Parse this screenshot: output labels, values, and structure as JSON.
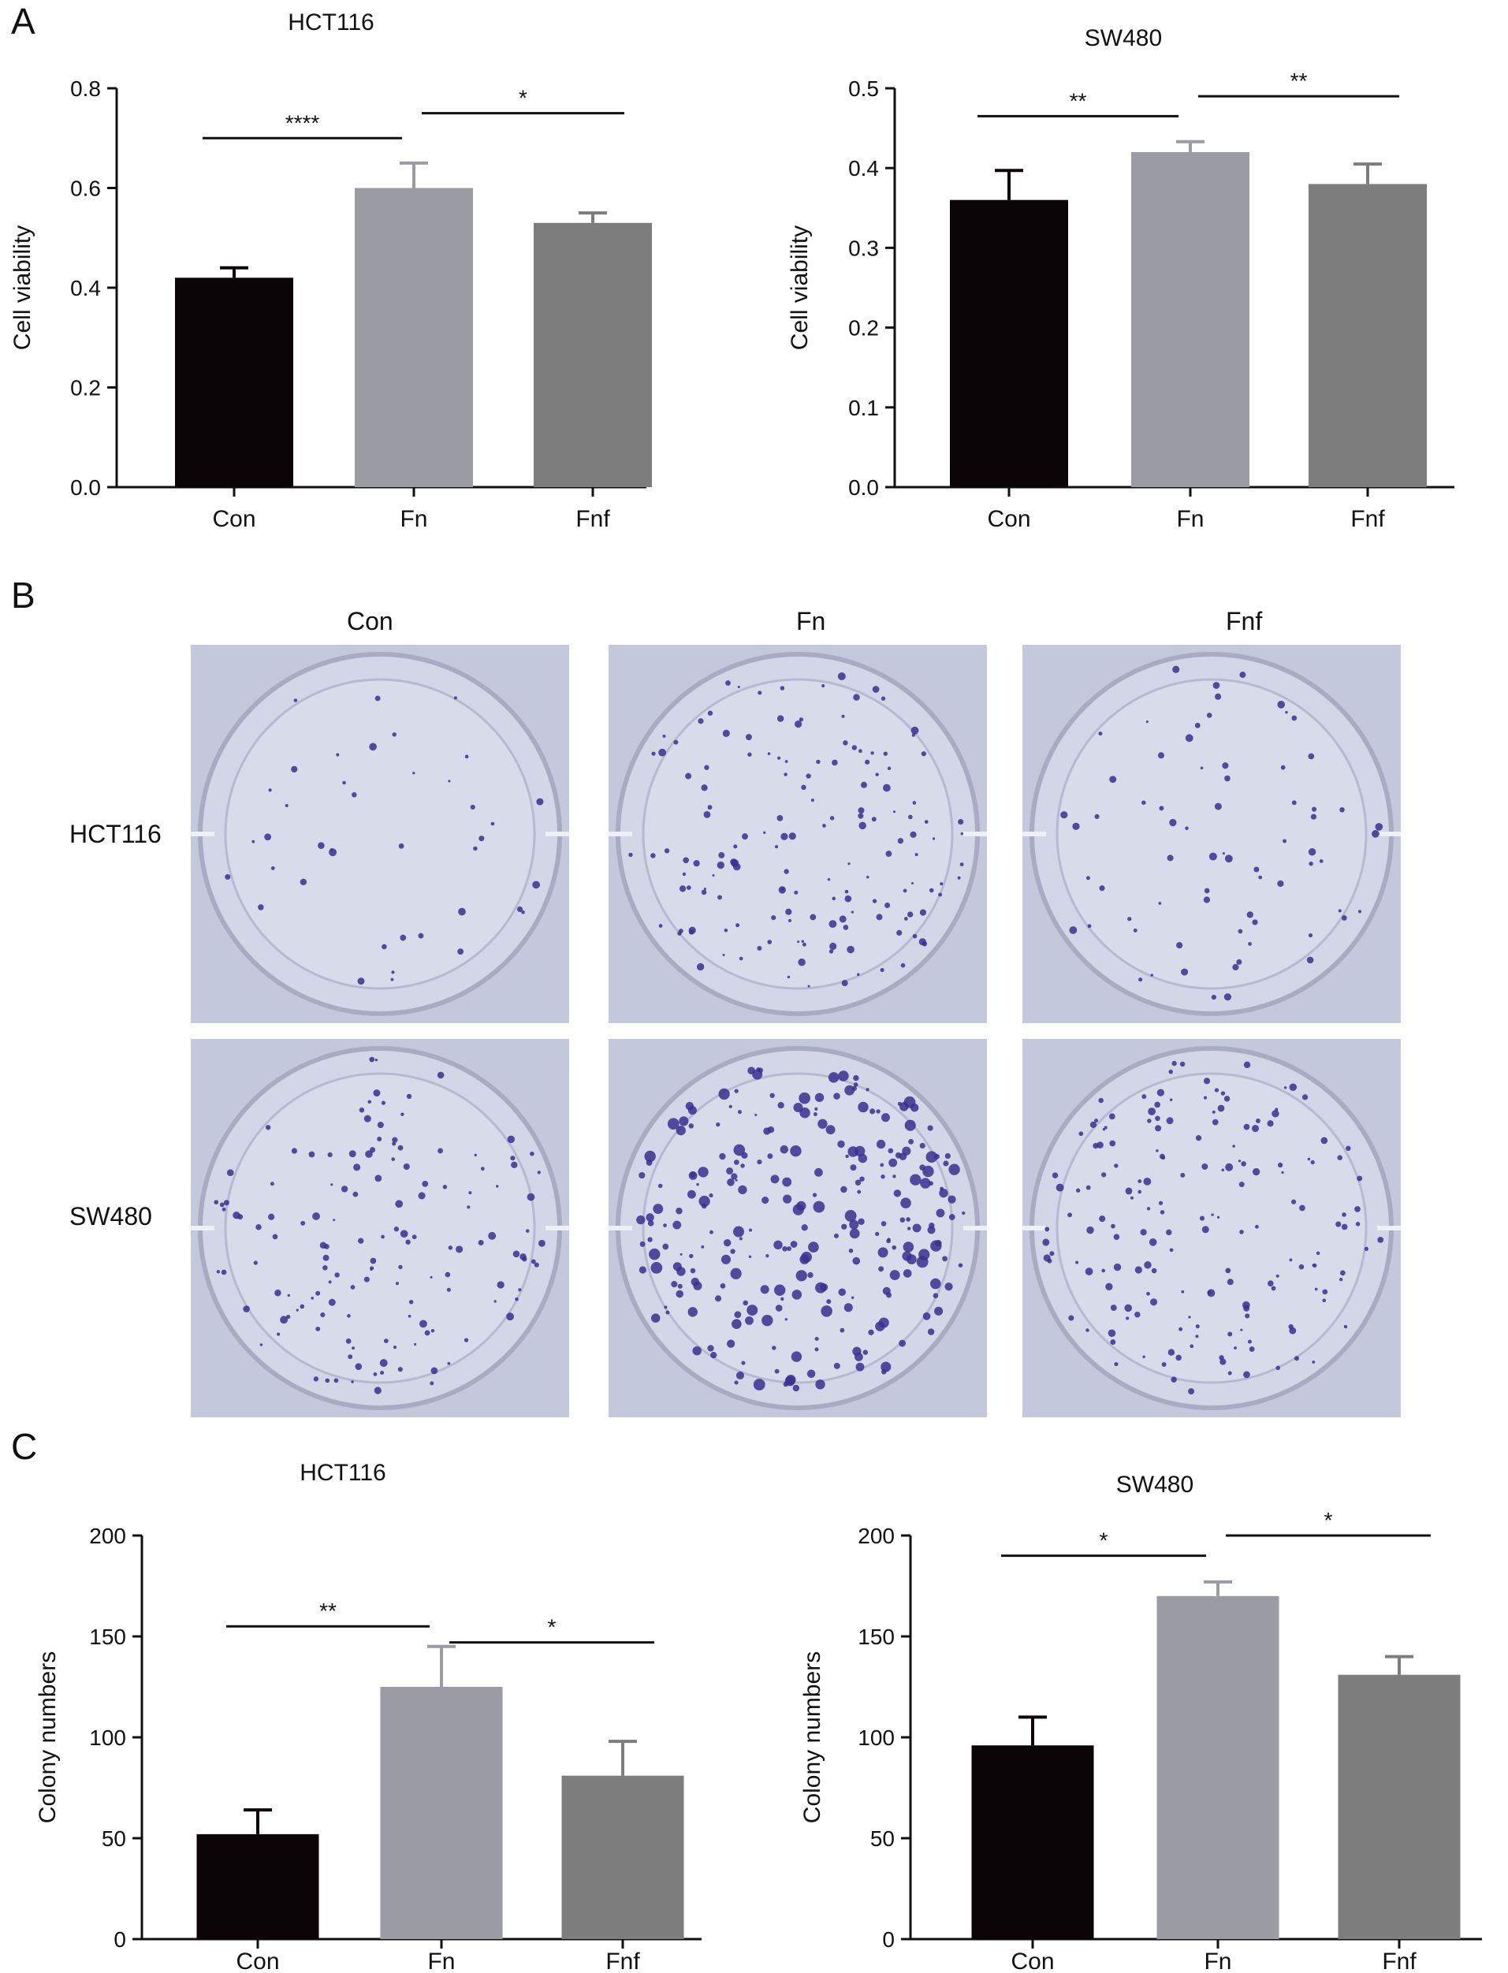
{
  "panels": {
    "A": "A",
    "B": "B",
    "C": "C"
  },
  "panel_b": {
    "columns": [
      "Con",
      "Fn",
      "Fnf"
    ],
    "rows": [
      "HCT116",
      "SW480"
    ]
  },
  "colors": {
    "con": "#0b0508",
    "fn": "#9b9ba3",
    "fnf": "#7d7d7d",
    "dish_bg": "#c4c8dc",
    "colony": "#3a2f8f"
  },
  "chart_data": [
    {
      "id": "A_left",
      "type": "bar",
      "title": "HCT116",
      "ylabel": "Cell viability",
      "categories": [
        "Con",
        "Fn",
        "Fnf"
      ],
      "values": [
        0.42,
        0.6,
        0.53
      ],
      "errors": [
        0.02,
        0.05,
        0.02
      ],
      "ylim": [
        0,
        0.8
      ],
      "yticks": [
        "0.0",
        "0.2",
        "0.4",
        "0.6",
        "0.8"
      ],
      "ytick_values": [
        0,
        0.2,
        0.4,
        0.6,
        0.8
      ],
      "significance": [
        {
          "from": 0,
          "to": 1,
          "label": "****",
          "y": 0.7
        },
        {
          "from": 1,
          "to": 2,
          "label": "*",
          "y": 0.75
        }
      ]
    },
    {
      "id": "A_right",
      "type": "bar",
      "title": "SW480",
      "ylabel": "Cell viability",
      "categories": [
        "Con",
        "Fn",
        "Fnf"
      ],
      "values": [
        0.36,
        0.42,
        0.38
      ],
      "errors": [
        0.037,
        0.013,
        0.025
      ],
      "ylim": [
        0,
        0.5
      ],
      "yticks": [
        "0.0",
        "0.1",
        "0.2",
        "0.3",
        "0.4",
        "0.5"
      ],
      "ytick_values": [
        0,
        0.1,
        0.2,
        0.3,
        0.4,
        0.5
      ],
      "significance": [
        {
          "from": 0,
          "to": 1,
          "label": "**",
          "y": 0.465
        },
        {
          "from": 1,
          "to": 2,
          "label": "**",
          "y": 0.49
        }
      ]
    },
    {
      "id": "C_left",
      "type": "bar",
      "title": "HCT116",
      "ylabel": "Colony numbers",
      "categories": [
        "Con",
        "Fn",
        "Fnf"
      ],
      "values": [
        52,
        125,
        81
      ],
      "errors": [
        12,
        20,
        17
      ],
      "ylim": [
        0,
        200
      ],
      "yticks": [
        "0",
        "50",
        "100",
        "150",
        "200"
      ],
      "ytick_values": [
        0,
        50,
        100,
        150,
        200
      ],
      "significance": [
        {
          "from": 0,
          "to": 1,
          "label": "**",
          "y": 155
        },
        {
          "from": 1,
          "to": 2,
          "label": "*",
          "y": 147
        }
      ]
    },
    {
      "id": "C_right",
      "type": "bar",
      "title": "SW480",
      "ylabel": "Colony numbers",
      "categories": [
        "Con",
        "Fn",
        "Fnf"
      ],
      "values": [
        96,
        170,
        131
      ],
      "errors": [
        14,
        7,
        9
      ],
      "ylim": [
        0,
        200
      ],
      "yticks": [
        "0",
        "50",
        "100",
        "150",
        "200"
      ],
      "ytick_values": [
        0,
        50,
        100,
        150,
        200
      ],
      "significance": [
        {
          "from": 0,
          "to": 1,
          "label": "*",
          "y": 190
        },
        {
          "from": 1,
          "to": 2,
          "label": "*",
          "y": 200
        }
      ]
    }
  ]
}
